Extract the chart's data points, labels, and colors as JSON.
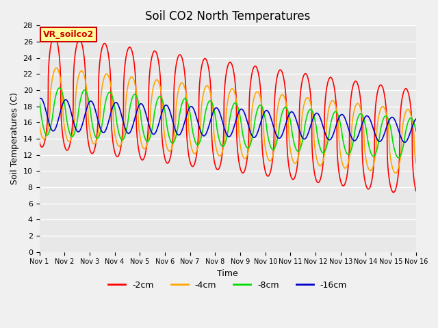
{
  "title": "Soil CO2 North Temperatures",
  "xlabel": "Time",
  "ylabel": "Soil Temperatures (C)",
  "ylim": [
    0,
    28
  ],
  "x_tick_labels": [
    "Nov 1",
    "Nov 2",
    "Nov 3",
    "Nov 4",
    "Nov 5",
    "Nov 6",
    "Nov 7",
    "Nov 8",
    "Nov 9",
    "Nov 10",
    "Nov 11",
    "Nov 12",
    "Nov 13",
    "Nov 14",
    "Nov 15",
    "Nov 16"
  ],
  "legend_labels": [
    "-2cm",
    "-4cm",
    "-8cm",
    "-16cm"
  ],
  "legend_colors": [
    "#ff0000",
    "#ffa500",
    "#00dd00",
    "#0000cc"
  ],
  "annotation_text": "VR_soilco2",
  "annotation_bg": "#ffff99",
  "annotation_border": "#cc0000",
  "bg_color": "#e8e8e8",
  "grid_color": "#ffffff",
  "title_fontsize": 12,
  "axis_label_fontsize": 9,
  "tick_fontsize": 8,
  "legend_fontsize": 9
}
